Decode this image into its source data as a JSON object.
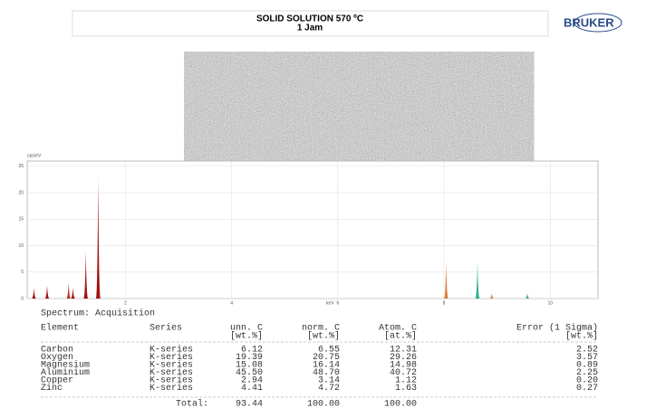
{
  "header": {
    "title": "SOLID SOLUTION 570 ºC",
    "subtitle": "1 Jam",
    "logo": "BRUKER"
  },
  "chart_data": {
    "type": "spectrum",
    "y_label": "cps/eV",
    "x_label": "keV",
    "xlim": [
      0.15,
      10.9
    ],
    "xticks": [
      2,
      4,
      6,
      8,
      10
    ],
    "ylim": [
      0,
      26
    ],
    "yticks": [
      0,
      5,
      10,
      15,
      20,
      25
    ],
    "grid": true,
    "x": [
      0.277,
      0.525,
      0.93,
      1.012,
      1.254,
      1.487,
      8.04,
      8.63,
      8.9,
      9.57
    ],
    "values": [
      2,
      2.5,
      3,
      2,
      9,
      23,
      7,
      7,
      1,
      1
    ],
    "colors": [
      "#a01010",
      "#a01010",
      "#c03020",
      "#a01010",
      "#a01010",
      "#a01010",
      "#e08040",
      "#30b090",
      "#e08040",
      "#30b090"
    ]
  },
  "table": {
    "caption": "Spectrum: Acquisition",
    "columns": [
      "Element",
      "Series",
      "unn. C",
      "norm. C",
      "Atom. C",
      "Error (1 Sigma)"
    ],
    "units": [
      "",
      "",
      "[wt.%]",
      "[wt.%]",
      "[at.%]",
      "[wt.%]"
    ],
    "rows": [
      [
        "Carbon",
        "K-series",
        "6.12",
        "6.55",
        "12.31",
        "2.52"
      ],
      [
        "Oxygen",
        "K-series",
        "19.39",
        "20.75",
        "29.26",
        "3.57"
      ],
      [
        "Magnesium",
        "K-series",
        "15.08",
        "16.14",
        "14.98",
        "0.89"
      ],
      [
        "Aluminium",
        "K-series",
        "45.50",
        "48.70",
        "40.72",
        "2.25"
      ],
      [
        "Copper",
        "K-series",
        "2.94",
        "3.14",
        "1.12",
        "0.20"
      ],
      [
        "Zinc",
        "K-series",
        "4.41",
        "4.72",
        "1.63",
        "0.27"
      ]
    ],
    "total": [
      "Total:",
      "93.44",
      "100.00",
      "100.00"
    ]
  }
}
